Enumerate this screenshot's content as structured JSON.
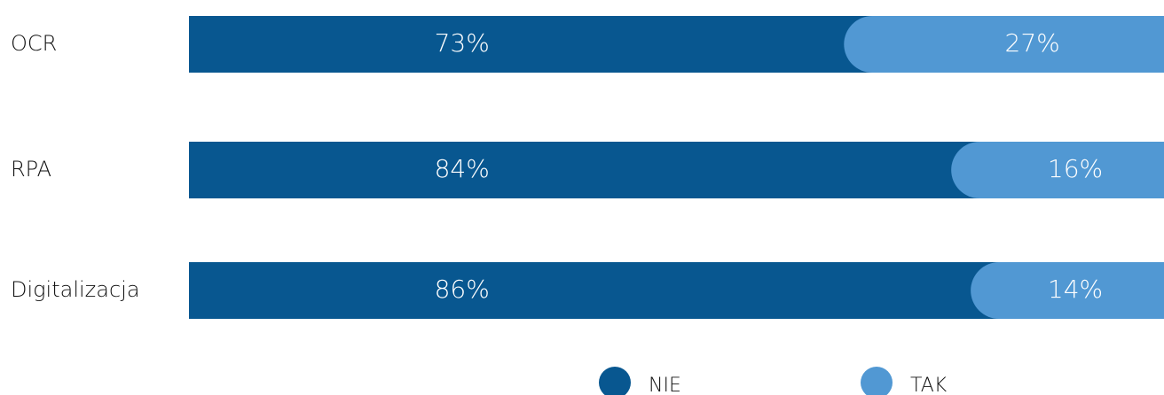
{
  "chart_data": {
    "type": "stacked-bar",
    "categories": [
      "OCR",
      "RPA",
      "Digitalizacja"
    ],
    "series": [
      {
        "name": "NIE",
        "color": "#085790",
        "values": [
          73,
          84,
          86
        ],
        "value_labels": [
          "73%",
          "84%",
          "86%"
        ]
      },
      {
        "name": "TAK",
        "color": "#5198d3",
        "values": [
          27,
          16,
          14
        ],
        "value_labels": [
          "27%",
          "16%",
          "14%"
        ]
      }
    ],
    "xlim": [
      0,
      100
    ]
  }
}
